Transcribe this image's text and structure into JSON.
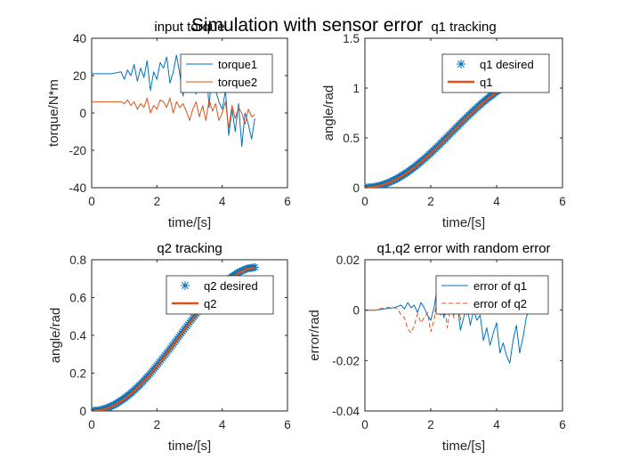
{
  "figure": {
    "suptitle": "Simulation with sensor error",
    "colors": {
      "blue": "#0072BD",
      "orange": "#D95319",
      "axis": "#262626"
    }
  },
  "chart_data": [
    {
      "id": "torque",
      "type": "line",
      "title": "input torque",
      "xlabel": "time/[s]",
      "ylabel": "torque/N*m",
      "xlim": [
        0,
        6
      ],
      "ylim": [
        -40,
        40
      ],
      "xticks": [
        "0",
        "2",
        "4",
        "6"
      ],
      "yticks": [
        "-40",
        "-20",
        "0",
        "20",
        "40"
      ],
      "xtick_values": [
        0,
        2,
        4,
        6
      ],
      "ytick_values": [
        -40,
        -20,
        0,
        20,
        40
      ],
      "legend": "top-right",
      "series": [
        {
          "name": "torque1",
          "color": "#0072BD",
          "style": "line",
          "x": [
            0,
            0.3,
            0.6,
            0.9,
            1.0,
            1.1,
            1.2,
            1.3,
            1.4,
            1.5,
            1.6,
            1.7,
            1.8,
            1.9,
            2.0,
            2.1,
            2.2,
            2.3,
            2.4,
            2.5,
            2.6,
            2.7,
            2.8,
            2.9,
            3.0,
            3.1,
            3.2,
            3.3,
            3.4,
            3.5,
            3.6,
            3.7,
            3.8,
            3.9,
            4.0,
            4.1,
            4.2,
            4.3,
            4.4,
            4.5,
            4.6,
            4.7,
            4.8,
            4.9,
            5.0
          ],
          "y": [
            21,
            21,
            21,
            22,
            18,
            23,
            20,
            26,
            17,
            24,
            19,
            28,
            12,
            22,
            18,
            27,
            24,
            30,
            16,
            22,
            31,
            21,
            9,
            26,
            20,
            25,
            10,
            20,
            14,
            26,
            3,
            28,
            12,
            6,
            2,
            12,
            -12,
            2,
            -10,
            5,
            -18,
            0,
            -6,
            -14,
            -3
          ]
        },
        {
          "name": "torque2",
          "color": "#D95319",
          "style": "line",
          "x": [
            0,
            0.3,
            0.6,
            0.9,
            1.0,
            1.1,
            1.2,
            1.3,
            1.4,
            1.5,
            1.6,
            1.7,
            1.8,
            1.9,
            2.0,
            2.1,
            2.2,
            2.3,
            2.4,
            2.5,
            2.6,
            2.7,
            2.8,
            2.9,
            3.0,
            3.1,
            3.2,
            3.3,
            3.4,
            3.5,
            3.6,
            3.7,
            3.8,
            3.9,
            4.0,
            4.1,
            4.2,
            4.3,
            4.4,
            4.5,
            4.6,
            4.7,
            4.8,
            4.9,
            5.0
          ],
          "y": [
            6,
            6,
            6,
            6,
            5,
            7,
            4,
            6,
            2,
            5,
            3,
            8,
            0,
            4,
            2,
            7,
            6,
            3,
            8,
            0,
            6,
            3,
            5,
            1,
            -4,
            2,
            6,
            -2,
            4,
            -4,
            7,
            1,
            5,
            -4,
            0,
            6,
            -8,
            4,
            -3,
            3,
            0,
            -6,
            2,
            -2,
            -1
          ]
        }
      ]
    },
    {
      "id": "q1",
      "type": "line",
      "title": "q1 tracking",
      "xlabel": "time/[s]",
      "ylabel": "angle/rad",
      "xlim": [
        0,
        6
      ],
      "ylim": [
        0,
        1.5
      ],
      "xticks": [
        "0",
        "2",
        "4",
        "6"
      ],
      "yticks": [
        "0",
        "0.5",
        "1",
        "1.5"
      ],
      "xtick_values": [
        0,
        2,
        4,
        6
      ],
      "ytick_values": [
        0,
        0.5,
        1,
        1.5
      ],
      "legend": "top-right",
      "series": [
        {
          "name": "q1 desired",
          "color": "#0072BD",
          "style": "markers",
          "x": [
            0,
            0.25,
            0.5,
            0.75,
            1.0,
            1.25,
            1.5,
            1.75,
            2.0,
            2.25,
            2.5,
            2.75,
            3.0,
            3.25,
            3.5,
            3.75,
            4.0,
            4.25,
            4.5,
            4.75,
            5.0
          ],
          "y": [
            0,
            0.006,
            0.024,
            0.055,
            0.095,
            0.146,
            0.206,
            0.274,
            0.348,
            0.427,
            0.51,
            0.594,
            0.677,
            0.757,
            0.833,
            0.903,
            0.965,
            1.018,
            1.06,
            1.089,
            1.1
          ]
        },
        {
          "name": "q1",
          "color": "#D95319",
          "style": "thick",
          "x": [
            0,
            0.25,
            0.5,
            0.75,
            1.0,
            1.25,
            1.5,
            1.75,
            2.0,
            2.25,
            2.5,
            2.75,
            3.0,
            3.25,
            3.5,
            3.75,
            4.0,
            4.25,
            4.5,
            4.75,
            5.0
          ],
          "y": [
            0,
            0.005,
            0.022,
            0.052,
            0.092,
            0.142,
            0.201,
            0.269,
            0.343,
            0.422,
            0.505,
            0.589,
            0.672,
            0.752,
            0.828,
            0.898,
            0.96,
            1.013,
            1.055,
            1.085,
            1.097
          ]
        }
      ]
    },
    {
      "id": "q2",
      "type": "line",
      "title": "q2 tracking",
      "xlabel": "time/[s]",
      "ylabel": "angle/rad",
      "xlim": [
        0,
        6
      ],
      "ylim": [
        0,
        0.8
      ],
      "xticks": [
        "0",
        "2",
        "4",
        "6"
      ],
      "yticks": [
        "0",
        "0.2",
        "0.4",
        "0.6",
        "0.8"
      ],
      "xtick_values": [
        0,
        2,
        4,
        6
      ],
      "ytick_values": [
        0,
        0.2,
        0.4,
        0.6,
        0.8
      ],
      "legend": "top-right",
      "series": [
        {
          "name": "q2 desired",
          "color": "#0072BD",
          "style": "markers",
          "x": [
            0,
            0.25,
            0.5,
            0.75,
            1.0,
            1.25,
            1.5,
            1.75,
            2.0,
            2.25,
            2.5,
            2.75,
            3.0,
            3.25,
            3.5,
            3.75,
            4.0,
            4.25,
            4.5,
            4.75,
            5.0
          ],
          "y": [
            0,
            0.004,
            0.017,
            0.038,
            0.066,
            0.101,
            0.142,
            0.189,
            0.241,
            0.296,
            0.353,
            0.411,
            0.468,
            0.523,
            0.576,
            0.624,
            0.667,
            0.704,
            0.733,
            0.753,
            0.76
          ]
        },
        {
          "name": "q2",
          "color": "#D95319",
          "style": "thick",
          "x": [
            0,
            0.25,
            0.5,
            0.75,
            1.0,
            1.25,
            1.5,
            1.75,
            2.0,
            2.25,
            2.5,
            2.75,
            3.0,
            3.25,
            3.5,
            3.75,
            4.0,
            4.25,
            4.5,
            4.75,
            5.0
          ],
          "y": [
            0,
            0.003,
            0.015,
            0.035,
            0.062,
            0.097,
            0.138,
            0.185,
            0.237,
            0.292,
            0.349,
            0.407,
            0.464,
            0.519,
            0.572,
            0.62,
            0.663,
            0.7,
            0.729,
            0.75,
            0.758
          ]
        }
      ]
    },
    {
      "id": "err",
      "type": "line",
      "title": "q1,q2 error with random error",
      "xlabel": "time/[s]",
      "ylabel": "error/rad",
      "xlim": [
        0,
        6
      ],
      "ylim": [
        -0.04,
        0.02
      ],
      "xticks": [
        "0",
        "2",
        "4",
        "6"
      ],
      "yticks": [
        "-0.04",
        "-0.02",
        "0",
        "0.02"
      ],
      "xtick_values": [
        0,
        2,
        4,
        6
      ],
      "ytick_values": [
        -0.04,
        -0.02,
        0,
        0.02
      ],
      "legend": "top-right",
      "series": [
        {
          "name": "error of q1",
          "color": "#0072BD",
          "style": "line",
          "x": [
            0,
            0.3,
            0.6,
            0.9,
            1.0,
            1.1,
            1.2,
            1.3,
            1.4,
            1.5,
            1.6,
            1.7,
            1.8,
            1.9,
            2.0,
            2.1,
            2.2,
            2.3,
            2.4,
            2.5,
            2.6,
            2.7,
            2.8,
            2.9,
            3.0,
            3.1,
            3.2,
            3.3,
            3.4,
            3.5,
            3.6,
            3.7,
            3.8,
            3.9,
            4.0,
            4.1,
            4.2,
            4.3,
            4.4,
            4.5,
            4.6,
            4.7,
            4.8,
            4.9,
            5.0
          ],
          "y": [
            0,
            0,
            0.0005,
            0.001,
            0.0015,
            0.002,
            0.0005,
            0.003,
            0.001,
            0.002,
            -0.001,
            0.003,
            0.001,
            -0.002,
            -0.004,
            0.001,
            0.009,
            0.004,
            -0.003,
            0.007,
            0.006,
            -0.002,
            0.004,
            -0.008,
            -0.003,
            0.002,
            -0.006,
            0,
            -0.004,
            -0.002,
            -0.012,
            -0.007,
            -0.014,
            -0.009,
            -0.005,
            -0.017,
            -0.013,
            -0.018,
            -0.021,
            -0.012,
            -0.006,
            -0.017,
            -0.011,
            -0.003,
            0.001
          ]
        },
        {
          "name": "error of q2",
          "color": "#D95319",
          "style": "dashed",
          "x": [
            0,
            0.3,
            0.6,
            0.9,
            1.0,
            1.1,
            1.2,
            1.3,
            1.4,
            1.5,
            1.6,
            1.7,
            1.8,
            1.9,
            2.0,
            2.1,
            2.2,
            2.3,
            2.4,
            2.5,
            2.6,
            2.7,
            2.8,
            2.9,
            3.0,
            3.1
          ],
          "y": [
            0,
            0,
            0.001,
            0.001,
            0.0005,
            -0.002,
            -0.003,
            -0.0075,
            -0.009,
            -0.006,
            -0.0015,
            -0.005,
            -0.003,
            -0.001,
            -0.0085,
            -0.004,
            0.006,
            -0.002,
            0.004,
            -0.007,
            0.002,
            -0.003,
            0.003,
            -0.004,
            0.006,
            -0.002
          ]
        }
      ]
    }
  ]
}
